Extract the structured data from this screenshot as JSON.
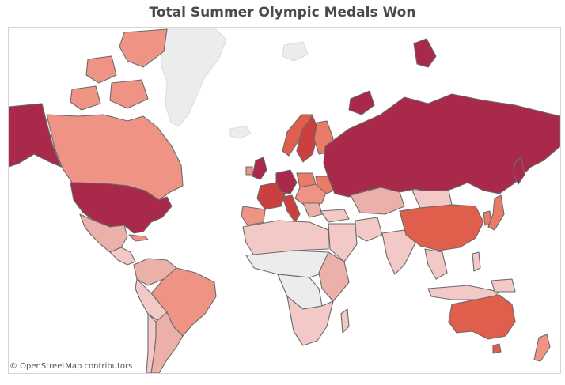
{
  "title": "Total Summer Olympic Medals Won",
  "attribution": "© OpenStreetMap contributors",
  "color_scale": {
    "none": "#ececec",
    "very_low": "#f2c9c6",
    "low": "#ebb0aa",
    "mid_low": "#ef9484",
    "mid": "#ea7b68",
    "mid_high": "#e05e4c",
    "high": "#c9403f",
    "very_high": "#a9294a"
  }
}
